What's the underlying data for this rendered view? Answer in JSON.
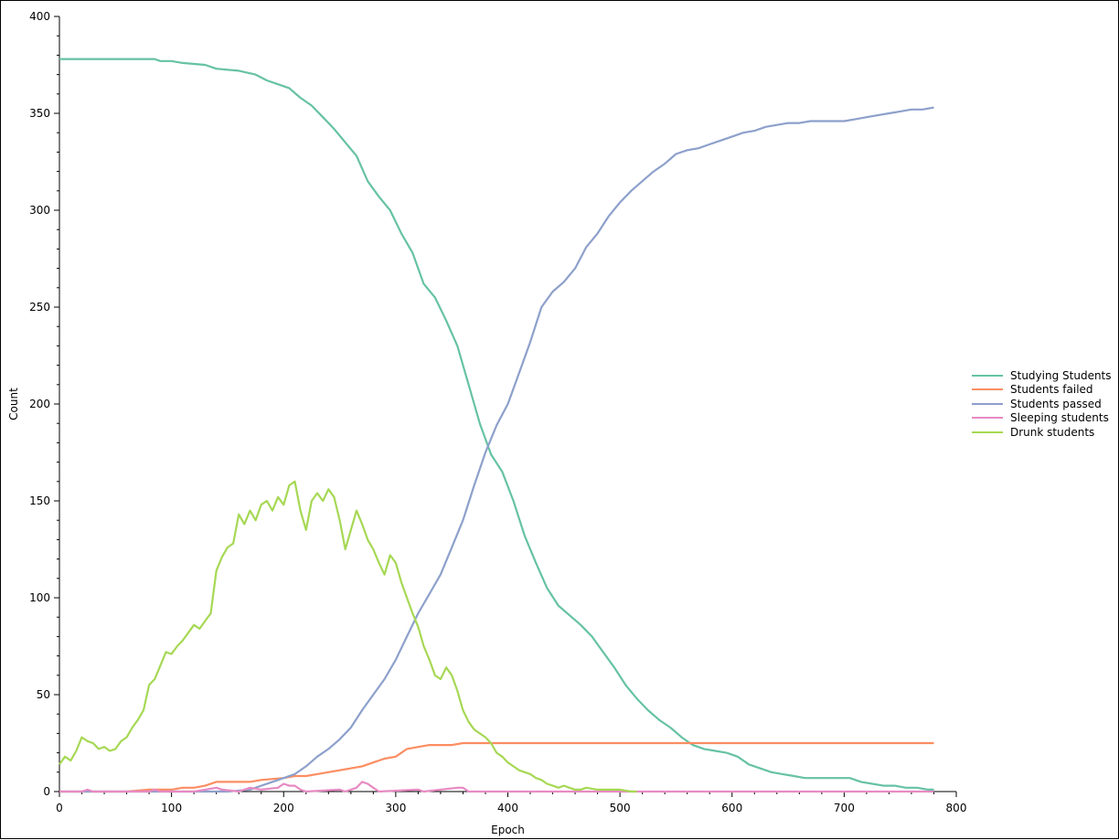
{
  "chart_data": {
    "type": "line",
    "xlabel": "Epoch",
    "ylabel": "Count",
    "xlim": [
      0,
      800
    ],
    "ylim": [
      0,
      400
    ],
    "x_ticks": [
      0,
      100,
      200,
      300,
      400,
      500,
      600,
      700,
      800
    ],
    "y_ticks": [
      0,
      50,
      100,
      150,
      200,
      250,
      300,
      350,
      400
    ],
    "legend_position": "right",
    "series": [
      {
        "name": "Studying Students",
        "color": "#66c2a5",
        "x": [
          0,
          85,
          90,
          100,
          110,
          130,
          140,
          160,
          175,
          185,
          195,
          205,
          215,
          225,
          235,
          245,
          255,
          265,
          275,
          285,
          295,
          305,
          315,
          325,
          335,
          345,
          355,
          365,
          375,
          385,
          395,
          405,
          415,
          425,
          435,
          445,
          455,
          465,
          475,
          485,
          495,
          505,
          515,
          525,
          535,
          545,
          555,
          565,
          575,
          585,
          595,
          605,
          615,
          625,
          635,
          645,
          655,
          665,
          675,
          685,
          695,
          705,
          715,
          725,
          735,
          745,
          755,
          765,
          775,
          780
        ],
        "y": [
          378,
          378,
          377,
          377,
          376,
          375,
          373,
          372,
          370,
          367,
          365,
          363,
          358,
          354,
          348,
          342,
          335,
          328,
          315,
          307,
          300,
          288,
          278,
          262,
          255,
          243,
          230,
          210,
          190,
          174,
          165,
          150,
          132,
          118,
          105,
          96,
          91,
          86,
          80,
          72,
          64,
          55,
          48,
          42,
          37,
          33,
          28,
          24,
          22,
          21,
          20,
          18,
          14,
          12,
          10,
          9,
          8,
          7,
          7,
          7,
          7,
          7,
          5,
          4,
          3,
          3,
          2,
          2,
          1,
          1
        ]
      },
      {
        "name": "Students failed",
        "color": "#fc8d62",
        "x": [
          0,
          60,
          80,
          100,
          110,
          120,
          130,
          140,
          150,
          160,
          170,
          180,
          200,
          210,
          220,
          230,
          240,
          250,
          260,
          270,
          280,
          290,
          300,
          310,
          320,
          330,
          340,
          350,
          360,
          370,
          380,
          400,
          450,
          500,
          600,
          700,
          780
        ],
        "y": [
          0,
          0,
          1,
          1,
          2,
          2,
          3,
          5,
          5,
          5,
          5,
          6,
          7,
          8,
          8,
          9,
          10,
          11,
          12,
          13,
          15,
          17,
          18,
          22,
          23,
          24,
          24,
          24,
          25,
          25,
          25,
          25,
          25,
          25,
          25,
          25,
          25
        ]
      },
      {
        "name": "Students passed",
        "color": "#8da0cb",
        "x": [
          0,
          150,
          170,
          180,
          190,
          200,
          210,
          220,
          230,
          240,
          250,
          260,
          270,
          280,
          290,
          300,
          310,
          320,
          330,
          340,
          350,
          360,
          370,
          380,
          390,
          400,
          410,
          420,
          430,
          440,
          450,
          460,
          470,
          480,
          490,
          500,
          510,
          520,
          530,
          540,
          550,
          560,
          570,
          580,
          590,
          600,
          610,
          620,
          630,
          640,
          650,
          660,
          670,
          680,
          690,
          700,
          710,
          720,
          730,
          740,
          750,
          760,
          770,
          780
        ],
        "y": [
          0,
          0,
          1,
          3,
          5,
          7,
          9,
          13,
          18,
          22,
          27,
          33,
          42,
          50,
          58,
          68,
          80,
          92,
          102,
          112,
          126,
          140,
          158,
          175,
          189,
          200,
          216,
          232,
          250,
          258,
          263,
          270,
          281,
          288,
          297,
          304,
          310,
          315,
          320,
          324,
          329,
          331,
          332,
          334,
          336,
          338,
          340,
          341,
          343,
          344,
          345,
          345,
          346,
          346,
          346,
          346,
          347,
          348,
          349,
          350,
          351,
          352,
          352,
          353
        ]
      },
      {
        "name": "Sleeping students",
        "color": "#e78ac3",
        "x": [
          0,
          20,
          25,
          30,
          80,
          85,
          90,
          120,
          130,
          140,
          145,
          160,
          170,
          180,
          195,
          200,
          205,
          210,
          215,
          220,
          250,
          255,
          260,
          265,
          270,
          275,
          280,
          285,
          320,
          325,
          355,
          360,
          365,
          370,
          400,
          500,
          600,
          700,
          780
        ],
        "y": [
          0,
          0,
          1,
          0,
          0,
          1,
          0,
          0,
          1,
          2,
          1,
          0,
          2,
          1,
          2,
          4,
          3,
          3,
          1,
          0,
          1,
          0,
          1,
          2,
          5,
          4,
          2,
          0,
          1,
          0,
          2,
          2,
          0,
          0,
          0,
          0,
          0,
          0,
          0
        ]
      },
      {
        "name": "Drunk students",
        "color": "#a6d854",
        "x": [
          0,
          5,
          10,
          15,
          20,
          25,
          30,
          35,
          40,
          45,
          50,
          55,
          60,
          65,
          70,
          75,
          80,
          85,
          90,
          95,
          100,
          105,
          110,
          115,
          120,
          125,
          130,
          135,
          140,
          145,
          150,
          155,
          160,
          165,
          170,
          175,
          180,
          185,
          190,
          195,
          200,
          205,
          210,
          215,
          220,
          225,
          230,
          235,
          240,
          245,
          250,
          255,
          260,
          265,
          270,
          275,
          280,
          285,
          290,
          295,
          300,
          305,
          310,
          315,
          320,
          325,
          330,
          335,
          340,
          345,
          350,
          355,
          360,
          365,
          370,
          375,
          380,
          385,
          390,
          395,
          400,
          405,
          410,
          415,
          420,
          425,
          430,
          435,
          440,
          445,
          450,
          455,
          460,
          465,
          470,
          480,
          490,
          500,
          510,
          515
        ],
        "y": [
          14,
          18,
          16,
          21,
          28,
          26,
          25,
          22,
          23,
          21,
          22,
          26,
          28,
          33,
          37,
          42,
          55,
          58,
          65,
          72,
          71,
          75,
          78,
          82,
          86,
          84,
          88,
          92,
          114,
          121,
          126,
          128,
          143,
          138,
          145,
          140,
          148,
          150,
          145,
          152,
          148,
          158,
          160,
          145,
          135,
          150,
          154,
          150,
          156,
          152,
          140,
          125,
          135,
          145,
          138,
          130,
          125,
          118,
          112,
          122,
          118,
          108,
          100,
          92,
          85,
          75,
          68,
          60,
          58,
          64,
          60,
          52,
          42,
          36,
          32,
          30,
          28,
          25,
          20,
          18,
          15,
          13,
          11,
          10,
          9,
          7,
          6,
          4,
          3,
          2,
          3,
          2,
          1,
          1,
          2,
          1,
          1,
          1,
          0,
          0
        ]
      }
    ]
  }
}
